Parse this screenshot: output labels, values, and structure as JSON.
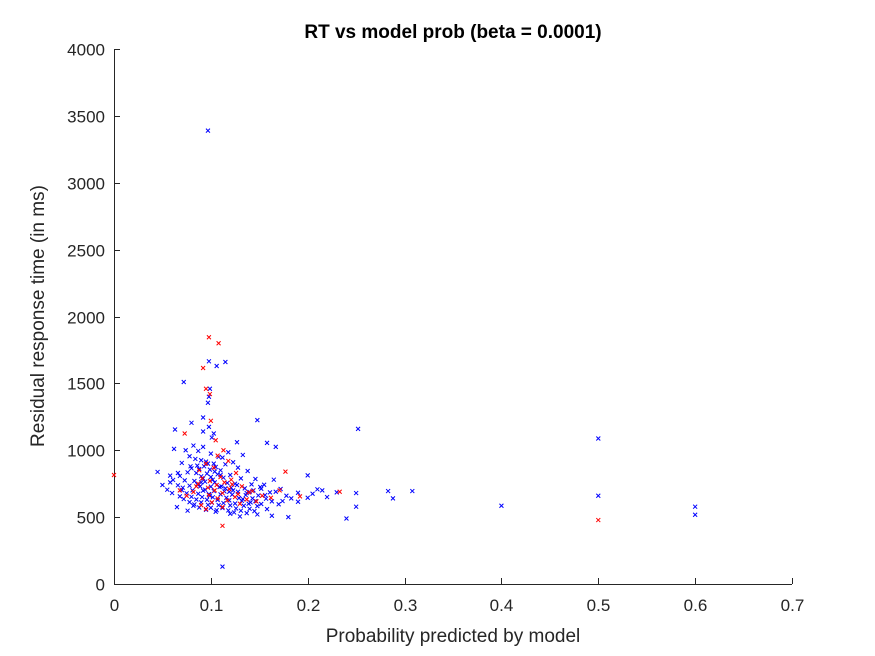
{
  "chart_data": {
    "type": "scatter",
    "title": "RT vs model prob (beta = 0.0001)",
    "xlabel": "Probability predicted by model",
    "ylabel": "Residual response time (in ms)",
    "xlim": [
      0,
      0.7
    ],
    "ylim": [
      0,
      4000
    ],
    "xticks": [
      "0",
      "0.1",
      "0.2",
      "0.3",
      "0.4",
      "0.5",
      "0.6",
      "0.7"
    ],
    "yticks": [
      "0",
      "500",
      "1000",
      "1500",
      "2000",
      "2500",
      "3000",
      "3500",
      "4000"
    ],
    "xtick_values": [
      0,
      0.1,
      0.2,
      0.3,
      0.4,
      0.5,
      0.6,
      0.7
    ],
    "ytick_values": [
      0,
      500,
      1000,
      1500,
      2000,
      2500,
      3000,
      3500,
      4000
    ],
    "marker": "x",
    "grid": false,
    "series": [
      {
        "color": "#0000ff",
        "points": [
          [
            0.097,
            3390
          ],
          [
            0.098,
            1665
          ],
          [
            0.115,
            1660
          ],
          [
            0.106,
            1630
          ],
          [
            0.072,
            1510
          ],
          [
            0.099,
            1460
          ],
          [
            0.098,
            1400
          ],
          [
            0.097,
            1355
          ],
          [
            0.092,
            1245
          ],
          [
            0.148,
            1225
          ],
          [
            0.08,
            1205
          ],
          [
            0.098,
            1175
          ],
          [
            0.252,
            1160
          ],
          [
            0.063,
            1155
          ],
          [
            0.092,
            1140
          ],
          [
            0.103,
            1125
          ],
          [
            0.101,
            1095
          ],
          [
            0.5,
            1088
          ],
          [
            0.127,
            1060
          ],
          [
            0.158,
            1055
          ],
          [
            0.082,
            1035
          ],
          [
            0.092,
            1025
          ],
          [
            0.167,
            1025
          ],
          [
            0.062,
            1010
          ],
          [
            0.074,
            1000
          ],
          [
            0.087,
            995
          ],
          [
            0.118,
            985
          ],
          [
            0.1,
            975
          ],
          [
            0.133,
            965
          ],
          [
            0.078,
            955
          ],
          [
            0.108,
            950
          ],
          [
            0.112,
            945
          ],
          [
            0.084,
            935
          ],
          [
            0.09,
            925
          ],
          [
            0.095,
            915
          ],
          [
            0.123,
            910
          ],
          [
            0.07,
            905
          ],
          [
            0.103,
            900
          ],
          [
            0.115,
            895
          ],
          [
            0.086,
            885
          ],
          [
            0.093,
            880
          ],
          [
            0.105,
            875
          ],
          [
            0.128,
            870
          ],
          [
            0.08,
            865
          ],
          [
            0.088,
            860
          ],
          [
            0.099,
            855
          ],
          [
            0.11,
            850
          ],
          [
            0.138,
            845
          ],
          [
            0.045,
            838
          ],
          [
            0.076,
            835
          ],
          [
            0.085,
            830
          ],
          [
            0.096,
            825
          ],
          [
            0.107,
            820
          ],
          [
            0.12,
            815
          ],
          [
            0.2,
            812
          ],
          [
            0.058,
            810
          ],
          [
            0.068,
            808
          ],
          [
            0.09,
            805
          ],
          [
            0.1,
            800
          ],
          [
            0.113,
            795
          ],
          [
            0.131,
            790
          ],
          [
            0.146,
            785
          ],
          [
            0.165,
            780
          ],
          [
            0.061,
            778
          ],
          [
            0.073,
            775
          ],
          [
            0.083,
            770
          ],
          [
            0.094,
            765
          ],
          [
            0.104,
            760
          ],
          [
            0.117,
            755
          ],
          [
            0.125,
            750
          ],
          [
            0.142,
            745
          ],
          [
            0.155,
            742
          ],
          [
            0.05,
            740
          ],
          [
            0.066,
            738
          ],
          [
            0.078,
            735
          ],
          [
            0.089,
            730
          ],
          [
            0.1,
            728
          ],
          [
            0.109,
            725
          ],
          [
            0.121,
            720
          ],
          [
            0.135,
            715
          ],
          [
            0.152,
            712
          ],
          [
            0.172,
            710
          ],
          [
            0.21,
            708
          ],
          [
            0.055,
            705
          ],
          [
            0.07,
            702
          ],
          [
            0.081,
            700
          ],
          [
            0.092,
            698
          ],
          [
            0.103,
            695
          ],
          [
            0.114,
            692
          ],
          [
            0.128,
            690
          ],
          [
            0.14,
            688
          ],
          [
            0.161,
            685
          ],
          [
            0.19,
            682
          ],
          [
            0.283,
            695
          ],
          [
            0.308,
            695
          ],
          [
            0.23,
            685
          ],
          [
            0.06,
            680
          ],
          [
            0.075,
            678
          ],
          [
            0.087,
            675
          ],
          [
            0.098,
            672
          ],
          [
            0.11,
            670
          ],
          [
            0.122,
            668
          ],
          [
            0.136,
            665
          ],
          [
            0.149,
            662
          ],
          [
            0.178,
            660
          ],
          [
            0.25,
            680
          ],
          [
            0.5,
            660
          ],
          [
            0.068,
            655
          ],
          [
            0.08,
            652
          ],
          [
            0.091,
            650
          ],
          [
            0.102,
            648
          ],
          [
            0.116,
            645
          ],
          [
            0.129,
            642
          ],
          [
            0.143,
            640
          ],
          [
            0.157,
            638
          ],
          [
            0.2,
            645
          ],
          [
            0.22,
            650
          ],
          [
            0.288,
            640
          ],
          [
            0.072,
            635
          ],
          [
            0.085,
            632
          ],
          [
            0.096,
            630
          ],
          [
            0.107,
            628
          ],
          [
            0.119,
            625
          ],
          [
            0.132,
            622
          ],
          [
            0.146,
            620
          ],
          [
            0.163,
            618
          ],
          [
            0.19,
            615
          ],
          [
            0.078,
            612
          ],
          [
            0.09,
            610
          ],
          [
            0.101,
            608
          ],
          [
            0.113,
            605
          ],
          [
            0.125,
            602
          ],
          [
            0.139,
            600
          ],
          [
            0.152,
            598
          ],
          [
            0.17,
            596
          ],
          [
            0.083,
            595
          ],
          [
            0.097,
            592
          ],
          [
            0.108,
            590
          ],
          [
            0.12,
            588
          ],
          [
            0.134,
            585
          ],
          [
            0.148,
            582
          ],
          [
            0.25,
            578
          ],
          [
            0.4,
            585
          ],
          [
            0.6,
            578
          ],
          [
            0.065,
            575
          ],
          [
            0.088,
            572
          ],
          [
            0.1,
            570
          ],
          [
            0.112,
            568
          ],
          [
            0.126,
            565
          ],
          [
            0.14,
            562
          ],
          [
            0.158,
            560
          ],
          [
            0.095,
            555
          ],
          [
            0.106,
            552
          ],
          [
            0.118,
            550
          ],
          [
            0.131,
            548
          ],
          [
            0.145,
            545
          ],
          [
            0.105,
            540
          ],
          [
            0.124,
            535
          ],
          [
            0.137,
            530
          ],
          [
            0.076,
            548
          ],
          [
            0.12,
            525
          ],
          [
            0.148,
            520
          ],
          [
            0.6,
            518
          ],
          [
            0.163,
            510
          ],
          [
            0.24,
            490
          ],
          [
            0.13,
            505
          ],
          [
            0.18,
            500
          ],
          [
            0.112,
            130
          ],
          [
            0.082,
            585
          ],
          [
            0.115,
            715
          ],
          [
            0.09,
            760
          ],
          [
            0.102,
            780
          ],
          [
            0.127,
            740
          ],
          [
            0.094,
            705
          ],
          [
            0.11,
            815
          ],
          [
            0.119,
            690
          ],
          [
            0.086,
            745
          ],
          [
            0.099,
            660
          ],
          [
            0.137,
            680
          ],
          [
            0.151,
            725
          ],
          [
            0.071,
            720
          ],
          [
            0.104,
            840
          ],
          [
            0.123,
            700
          ],
          [
            0.092,
            790
          ],
          [
            0.141,
            610
          ],
          [
            0.167,
            690
          ],
          [
            0.183,
            640
          ],
          [
            0.205,
            675
          ],
          [
            0.215,
            700
          ],
          [
            0.058,
            760
          ],
          [
            0.066,
            830
          ],
          [
            0.079,
            880
          ],
          [
            0.097,
            900
          ],
          [
            0.111,
            730
          ],
          [
            0.133,
            635
          ],
          [
            0.144,
            700
          ],
          [
            0.156,
            665
          ],
          [
            0.174,
            620
          ]
        ]
      },
      {
        "color": "#ff0000",
        "points": [
          [
            0.098,
            1845
          ],
          [
            0.108,
            1800
          ],
          [
            0.092,
            1615
          ],
          [
            0.095,
            1460
          ],
          [
            0.099,
            1420
          ],
          [
            0.1,
            1220
          ],
          [
            0.073,
            1125
          ],
          [
            0.105,
            1075
          ],
          [
            0.113,
            1000
          ],
          [
            0.107,
            960
          ],
          [
            0.118,
            920
          ],
          [
            0.095,
            900
          ],
          [
            0.103,
            870
          ],
          [
            0.088,
            850
          ],
          [
            0.177,
            840
          ],
          [
            0.126,
            830
          ],
          [
            0.0,
            815
          ],
          [
            0.11,
            800
          ],
          [
            0.091,
            790
          ],
          [
            0.121,
            780
          ],
          [
            0.099,
            770
          ],
          [
            0.114,
            760
          ],
          [
            0.087,
            750
          ],
          [
            0.106,
            740
          ],
          [
            0.132,
            730
          ],
          [
            0.097,
            720
          ],
          [
            0.119,
            710
          ],
          [
            0.104,
            700
          ],
          [
            0.143,
            695
          ],
          [
            0.233,
            690
          ],
          [
            0.082,
            688
          ],
          [
            0.112,
            680
          ],
          [
            0.128,
            672
          ],
          [
            0.098,
            665
          ],
          [
            0.153,
            660
          ],
          [
            0.125,
            650
          ],
          [
            0.162,
            645
          ],
          [
            0.107,
            640
          ],
          [
            0.137,
            632
          ],
          [
            0.117,
            625
          ],
          [
            0.147,
            618
          ],
          [
            0.101,
            610
          ],
          [
            0.13,
            600
          ],
          [
            0.09,
            590
          ],
          [
            0.112,
            575
          ],
          [
            0.095,
            560
          ],
          [
            0.5,
            478
          ],
          [
            0.112,
            435
          ],
          [
            0.075,
            660
          ],
          [
            0.068,
            700
          ],
          [
            0.085,
            730
          ],
          [
            0.122,
            745
          ],
          [
            0.139,
            685
          ],
          [
            0.171,
            700
          ],
          [
            0.192,
            655
          ]
        ]
      }
    ]
  }
}
